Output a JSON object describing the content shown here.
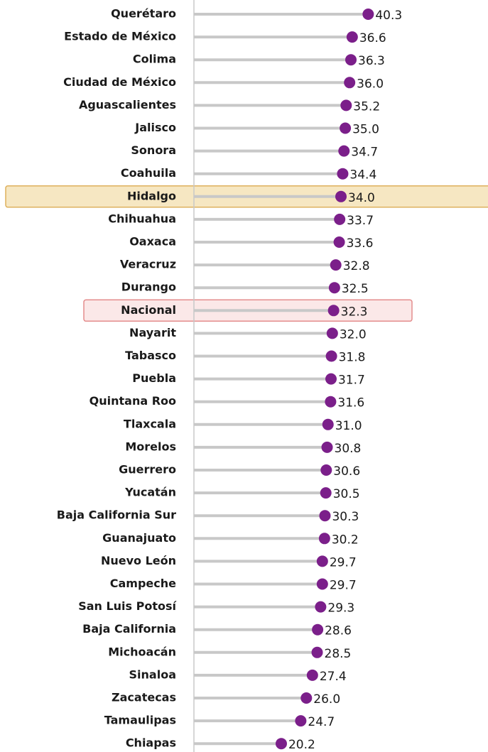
{
  "chart_data": {
    "type": "lollipop",
    "categories": [
      "Querétaro",
      "Estado de México",
      "Colima",
      "Ciudad de México",
      "Aguascalientes",
      "Jalisco",
      "Sonora",
      "Coahuila",
      "Hidalgo",
      "Chihuahua",
      "Oaxaca",
      "Veracruz",
      "Durango",
      "Nacional",
      "Nayarit",
      "Tabasco",
      "Puebla",
      "Quintana Roo",
      "Tlaxcala",
      "Morelos",
      "Guerrero",
      "Yucatán",
      "Baja California Sur",
      "Guanajuato",
      "Nuevo León",
      "Campeche",
      "San Luis Potosí",
      "Baja California",
      "Michoacán",
      "Sinaloa",
      "Zacatecas",
      "Tamaulipas",
      "Chiapas"
    ],
    "values": [
      40.3,
      36.6,
      36.3,
      36.0,
      35.2,
      35.0,
      34.7,
      34.4,
      34.0,
      33.7,
      33.6,
      32.8,
      32.5,
      32.3,
      32.0,
      31.8,
      31.7,
      31.6,
      31.0,
      30.8,
      30.6,
      30.5,
      30.3,
      30.2,
      29.7,
      29.7,
      29.3,
      28.6,
      28.5,
      27.4,
      26.0,
      24.7,
      20.2
    ],
    "value_labels": [
      "40.3",
      "36.6",
      "36.3",
      "36.0",
      "35.2",
      "35.0",
      "34.7",
      "34.4",
      "34.0",
      "33.7",
      "33.6",
      "32.8",
      "32.5",
      "32.3",
      "32.0",
      "31.8",
      "31.7",
      "31.6",
      "31.0",
      "30.8",
      "30.6",
      "30.5",
      "30.3",
      "30.2",
      "29.7",
      "29.7",
      "29.3",
      "28.6",
      "28.5",
      "27.4",
      "26.0",
      "24.7",
      "20.2"
    ],
    "color": "#7b1f8a",
    "stem_color": "#c8c8c8",
    "xlim": [
      0,
      68
    ],
    "highlights": [
      {
        "category": "Hidalgo",
        "fill": "#f5e3b8",
        "stroke": "#d9a441",
        "span": "full"
      },
      {
        "category": "Nacional",
        "fill": "#fbe4e4",
        "stroke": "#e07a7a",
        "span": "partial"
      }
    ]
  }
}
